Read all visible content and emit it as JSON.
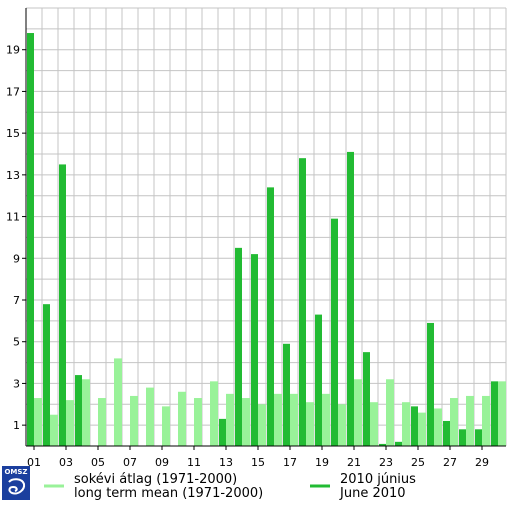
{
  "chart_data": {
    "type": "bar",
    "x": [
      1,
      2,
      3,
      4,
      5,
      6,
      7,
      8,
      9,
      10,
      11,
      12,
      13,
      14,
      15,
      16,
      17,
      18,
      19,
      20,
      21,
      22,
      23,
      24,
      25,
      26,
      27,
      28,
      29,
      30
    ],
    "x_tick_labels": [
      "01",
      "03",
      "05",
      "07",
      "09",
      "11",
      "13",
      "15",
      "17",
      "19",
      "21",
      "23",
      "25",
      "27",
      "29"
    ],
    "y_tick_labels": [
      "1",
      "3",
      "5",
      "7",
      "9",
      "11",
      "13",
      "15",
      "17",
      "19"
    ],
    "ylim": [
      0,
      21
    ],
    "grid": true,
    "legend_position": "bottom",
    "series": [
      {
        "name_line1": "sokévi átlag (1971-2000)",
        "name_line2": "long term mean (1971-2000)",
        "color": "#99f299",
        "values": [
          2.3,
          1.5,
          2.2,
          3.2,
          2.3,
          4.2,
          2.4,
          2.8,
          1.9,
          2.6,
          2.3,
          3.1,
          2.5,
          2.3,
          2.0,
          2.5,
          2.5,
          2.1,
          2.5,
          2.0,
          3.2,
          2.1,
          3.2,
          2.1,
          1.6,
          1.8,
          2.3,
          2.4,
          2.4,
          3.1
        ]
      },
      {
        "name_line1": "2010 június",
        "name_line2": "June 2010",
        "color": "#22bb33",
        "values": [
          19.8,
          6.8,
          13.5,
          3.4,
          0,
          0,
          0,
          0,
          0,
          0,
          0,
          0,
          1.3,
          9.5,
          9.2,
          12.4,
          4.9,
          13.8,
          6.3,
          10.9,
          14.1,
          4.5,
          0.1,
          0.2,
          1.9,
          5.9,
          1.2,
          0.8,
          0.8,
          3.1
        ]
      }
    ]
  },
  "logo": {
    "text": "OMSZ"
  }
}
